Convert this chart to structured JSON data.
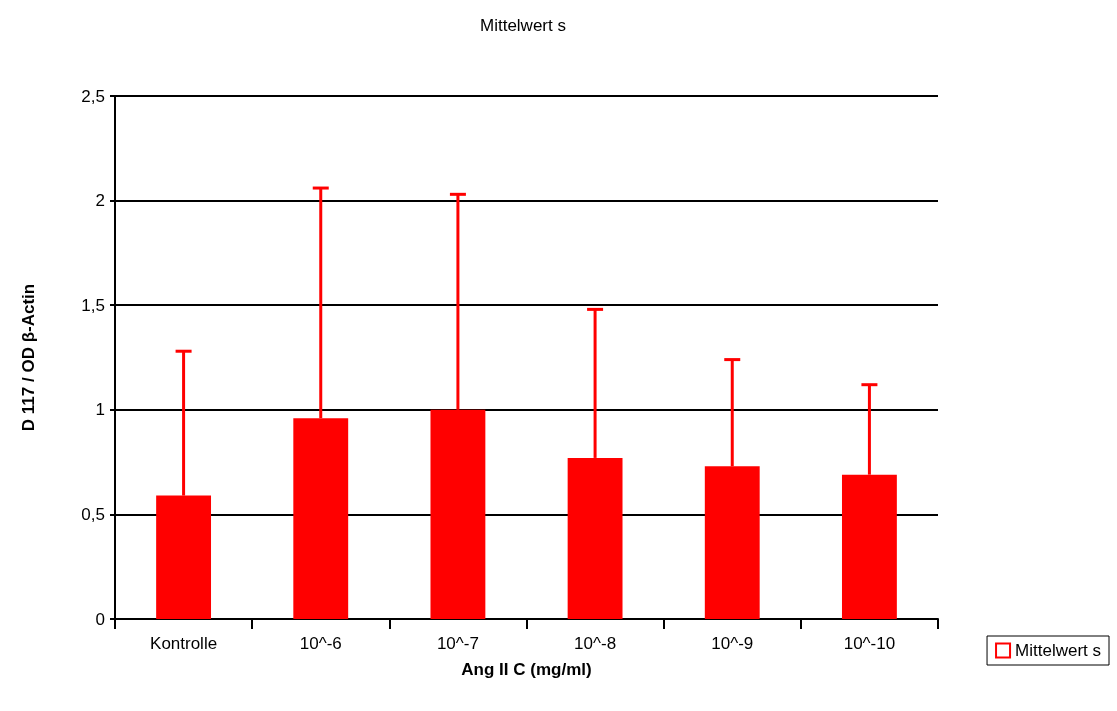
{
  "chart_data": {
    "type": "bar",
    "title": "Mittelwert s",
    "xlabel": "Ang II C (mg/ml)",
    "ylabel": "D 117 / OD β-Actin",
    "categories": [
      "Kontrolle",
      "10^-6",
      "10^-7",
      "10^-8",
      "10^-9",
      "10^-10"
    ],
    "series": [
      {
        "name": "Mittelwert s",
        "color": "#ff0000",
        "values": [
          0.59,
          0.96,
          1.0,
          0.77,
          0.73,
          0.69
        ],
        "errors": [
          [
            0.59,
            1.28
          ],
          [
            0.96,
            2.06
          ],
          [
            1.0,
            2.03
          ],
          [
            0.77,
            1.48
          ],
          [
            0.73,
            1.24
          ],
          [
            0.69,
            1.12
          ]
        ]
      }
    ],
    "ylim": [
      0,
      2.5
    ],
    "yticks": [
      0,
      {
        "value": 0.5,
        "label": "0,5"
      },
      1,
      {
        "value": 1.5,
        "label": "1,5"
      },
      2,
      {
        "value": 2.5,
        "label": "2,5"
      }
    ],
    "grid": "y",
    "legend": "right"
  }
}
